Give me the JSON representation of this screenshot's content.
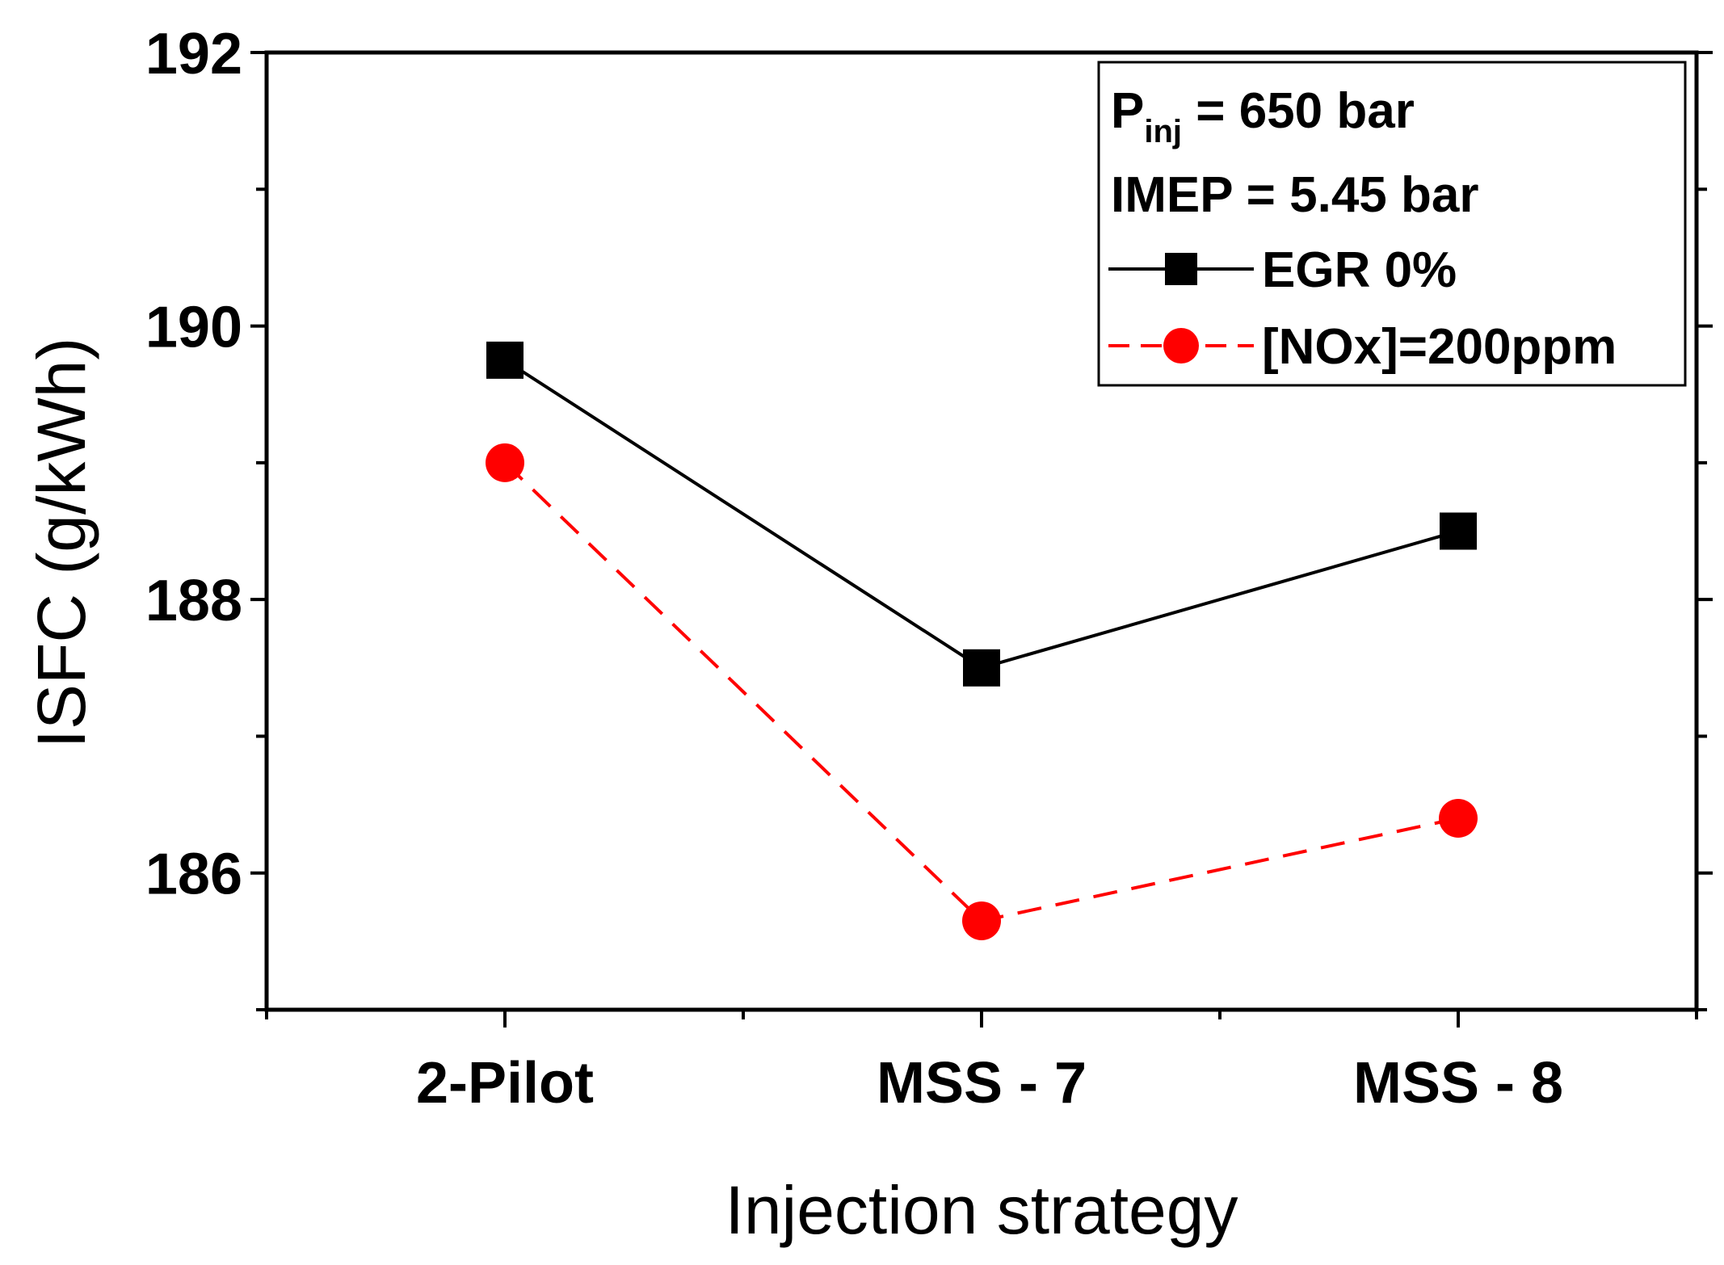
{
  "chart_data": {
    "type": "line",
    "title": "",
    "xlabel": "Injection strategy",
    "ylabel": "ISFC (g/kWh)",
    "categories": [
      "2-Pilot",
      "MSS - 7",
      "MSS - 8"
    ],
    "ylim": [
      185,
      192
    ],
    "yticks": [
      186,
      188,
      190,
      192
    ],
    "ytick_labels": [
      "186",
      "188",
      "190",
      "192"
    ],
    "series": [
      {
        "name": "EGR 0%",
        "values": [
          189.75,
          187.5,
          188.5
        ],
        "color": "#000000",
        "line_style": "solid",
        "marker": "square"
      },
      {
        "name": "[NOx]=200ppm",
        "values": [
          189.0,
          185.65,
          186.4
        ],
        "color": "#ff0000",
        "line_style": "dashed",
        "marker": "circle"
      }
    ],
    "legend": {
      "position": "top-right",
      "annotation_1": {
        "main": "P",
        "subscript": "inj",
        "rest": " = 650 bar"
      },
      "annotation_2": "IMEP = 5.45 bar"
    }
  }
}
